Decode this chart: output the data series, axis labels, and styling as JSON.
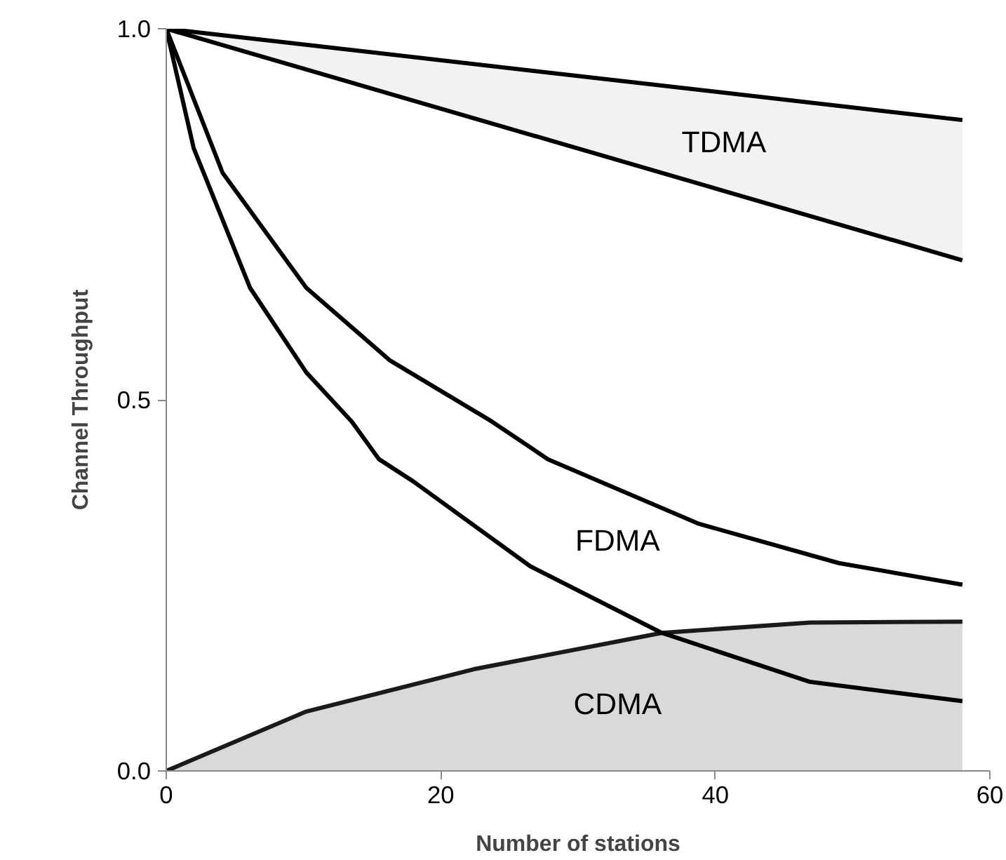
{
  "chart_data": {
    "type": "line",
    "xlabel": "Number of stations",
    "ylabel": "Channel Throughput",
    "xlim": [
      0,
      60
    ],
    "xticks": [
      0,
      20,
      40,
      60
    ],
    "ylim": [
      0,
      1
    ],
    "yticks": [
      {
        "value": 0,
        "label": "0.0"
      },
      {
        "value": 0.5,
        "label": "0.5"
      },
      {
        "value": 1,
        "label": "1.0"
      }
    ],
    "grid": false,
    "marker": "none",
    "line_style": "solid",
    "series": [
      {
        "color": "#000000",
        "x": [
          0,
          58
        ],
        "values": [
          1.0,
          0.877
        ],
        "lower": [
          1.0,
          0.688
        ],
        "upper": [
          1.0,
          0.877
        ]
      },
      {
        "type": "area",
        "color": "#d9d9d9",
        "x": [
          0,
          10.2,
          22.4,
          36.1,
          46.9,
          58
        ],
        "values": [
          0,
          0.08,
          0.137,
          0.186,
          0.2,
          0.201
        ]
      },
      {
        "color": "#000000",
        "x": [
          0,
          4.1,
          10.2,
          16.3,
          23.7,
          27.8,
          38.8,
          49,
          58
        ],
        "values": [
          1.0,
          0.806,
          0.651,
          0.553,
          0.471,
          0.42,
          0.333,
          0.28,
          0.251
        ]
      },
      {
        "color": "#000000",
        "x": [
          0,
          2.0,
          6.1,
          10.2,
          13.5,
          15.5,
          18,
          26.5,
          36.1,
          46.9,
          58
        ],
        "values": [
          1.0,
          0.839,
          0.651,
          0.537,
          0.471,
          0.42,
          0.39,
          0.276,
          0.186,
          0.12,
          0.094
        ]
      },
      {
        "color": "#000000",
        "x": [
          0,
          58
        ],
        "values": [
          1.0,
          0.688
        ]
      }
    ],
    "annotations": [
      "TDMA",
      "FDMA",
      "CDMA"
    ]
  }
}
